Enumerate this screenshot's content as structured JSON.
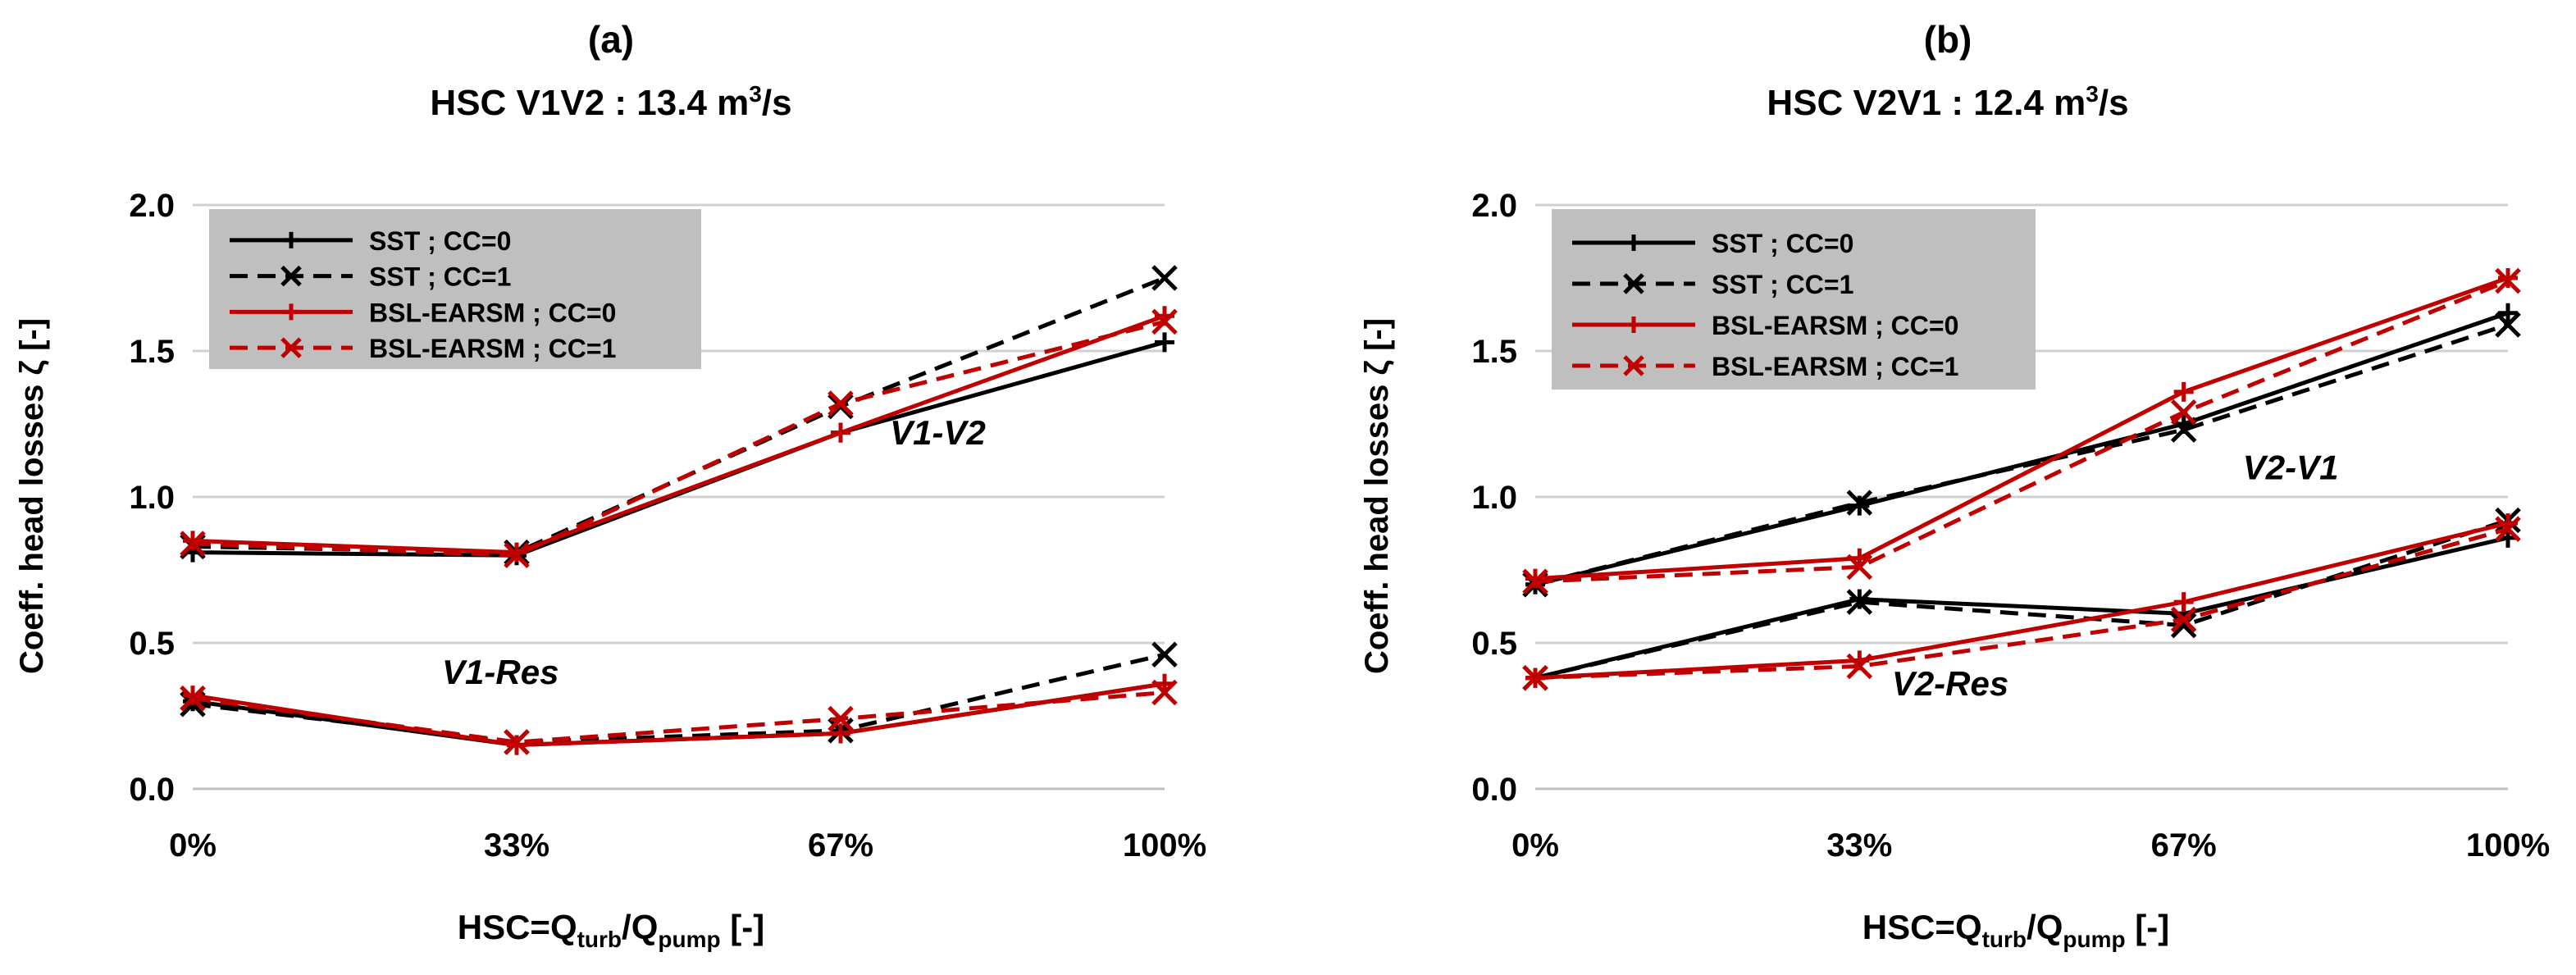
{
  "chart_data": [
    {
      "type": "line",
      "panel_label": "(a)",
      "title_prefix": "HSC V1V2 : 13.4 m",
      "title_sup": "3",
      "title_suffix": "/s",
      "ylabel": "Coeff. head losses ζ [-]",
      "xlabel_main": "HSC=Q",
      "xlabel_sub1": "turb",
      "xlabel_mid": "/Q",
      "xlabel_sub2": "pump",
      "xlabel_end": " [-]",
      "categories": [
        "0%",
        "33%",
        "67%",
        "100%"
      ],
      "ylim": [
        0,
        2
      ],
      "yticks": [
        "0.0",
        "0.5",
        "1.0",
        "1.5",
        "2.0"
      ],
      "yticks_values": [
        0,
        0.5,
        1.0,
        1.5,
        2.0
      ],
      "grid": true,
      "legend_position": "top-left",
      "annotations": [
        {
          "text": "V1-V2",
          "x": 2.3,
          "y": 1.18
        },
        {
          "text": "V1-Res",
          "x": 0.95,
          "y": 0.36
        }
      ],
      "series": [
        {
          "name": "SST ; CC=0",
          "group": "V1-V2",
          "color": "#000000",
          "dash": false,
          "marker": "plus",
          "values": [
            0.81,
            0.8,
            1.22,
            1.53
          ]
        },
        {
          "name": "SST ; CC=1",
          "group": "V1-V2",
          "color": "#000000",
          "dash": true,
          "marker": "x",
          "values": [
            0.83,
            0.81,
            1.31,
            1.75
          ]
        },
        {
          "name": "BSL-EARSM ; CC=0",
          "group": "V1-V2",
          "color": "#c00000",
          "dash": false,
          "marker": "plus",
          "values": [
            0.85,
            0.81,
            1.22,
            1.62
          ]
        },
        {
          "name": "BSL-EARSM ; CC=1",
          "group": "V1-V2",
          "color": "#c00000",
          "dash": true,
          "marker": "x",
          "values": [
            0.84,
            0.8,
            1.32,
            1.6
          ]
        },
        {
          "name": "SST ; CC=0",
          "group": "V1-Res",
          "color": "#000000",
          "dash": false,
          "marker": "plus",
          "values": [
            0.3,
            0.15,
            0.19,
            0.36
          ]
        },
        {
          "name": "SST ; CC=1",
          "group": "V1-Res",
          "color": "#000000",
          "dash": true,
          "marker": "x",
          "values": [
            0.29,
            0.16,
            0.2,
            0.46
          ]
        },
        {
          "name": "BSL-EARSM ; CC=0",
          "group": "V1-Res",
          "color": "#c00000",
          "dash": false,
          "marker": "plus",
          "values": [
            0.32,
            0.15,
            0.19,
            0.36
          ]
        },
        {
          "name": "BSL-EARSM ; CC=1",
          "group": "V1-Res",
          "color": "#c00000",
          "dash": true,
          "marker": "x",
          "values": [
            0.31,
            0.16,
            0.24,
            0.33
          ]
        }
      ],
      "legend": [
        {
          "label": "SST ; CC=0",
          "color": "#000000",
          "dash": false,
          "marker": "plus"
        },
        {
          "label": "SST ; CC=1",
          "color": "#000000",
          "dash": true,
          "marker": "x"
        },
        {
          "label": "BSL-EARSM ; CC=0",
          "color": "#c00000",
          "dash": false,
          "marker": "plus"
        },
        {
          "label": "BSL-EARSM ; CC=1",
          "color": "#c00000",
          "dash": true,
          "marker": "x"
        }
      ]
    },
    {
      "type": "line",
      "panel_label": "(b)",
      "title_prefix": "HSC V2V1 : 12.4 m",
      "title_sup": "3",
      "title_suffix": "/s",
      "ylabel": "Coeff. head losses ζ [-]",
      "xlabel_main": "HSC=Q",
      "xlabel_sub1": "turb",
      "xlabel_mid": "/Q",
      "xlabel_sub2": "pump",
      "xlabel_end": " [-]",
      "categories": [
        "0%",
        "33%",
        "67%",
        "100%"
      ],
      "ylim": [
        0,
        2
      ],
      "yticks": [
        "0.0",
        "0.5",
        "1.0",
        "1.5",
        "2.0"
      ],
      "yticks_values": [
        0,
        0.5,
        1.0,
        1.5,
        2.0
      ],
      "grid": true,
      "legend_position": "top-left",
      "annotations": [
        {
          "text": "V2-V1",
          "x": 2.33,
          "y": 1.06
        },
        {
          "text": "V2-Res",
          "x": 1.28,
          "y": 0.32
        }
      ],
      "series": [
        {
          "name": "SST ; CC=0",
          "group": "V2-V1",
          "color": "#000000",
          "dash": false,
          "marker": "plus",
          "values": [
            0.7,
            0.97,
            1.25,
            1.63
          ]
        },
        {
          "name": "SST ; CC=1",
          "group": "V2-V1",
          "color": "#000000",
          "dash": true,
          "marker": "x",
          "values": [
            0.7,
            0.98,
            1.23,
            1.59
          ]
        },
        {
          "name": "BSL-EARSM ; CC=0",
          "group": "V2-V1",
          "color": "#c00000",
          "dash": false,
          "marker": "plus",
          "values": [
            0.72,
            0.79,
            1.36,
            1.75
          ]
        },
        {
          "name": "BSL-EARSM ; CC=1",
          "group": "V2-V1",
          "color": "#c00000",
          "dash": true,
          "marker": "x",
          "values": [
            0.71,
            0.76,
            1.29,
            1.74
          ]
        },
        {
          "name": "SST ; CC=0",
          "group": "V2-Res",
          "color": "#000000",
          "dash": false,
          "marker": "plus",
          "values": [
            0.38,
            0.65,
            0.6,
            0.86
          ]
        },
        {
          "name": "SST ; CC=1",
          "group": "V2-Res",
          "color": "#000000",
          "dash": true,
          "marker": "x",
          "values": [
            0.38,
            0.64,
            0.56,
            0.92
          ]
        },
        {
          "name": "BSL-EARSM ; CC=0",
          "group": "V2-Res",
          "color": "#c00000",
          "dash": false,
          "marker": "plus",
          "values": [
            0.38,
            0.44,
            0.64,
            0.91
          ]
        },
        {
          "name": "BSL-EARSM ; CC=1",
          "group": "V2-Res",
          "color": "#c00000",
          "dash": true,
          "marker": "x",
          "values": [
            0.38,
            0.42,
            0.58,
            0.89
          ]
        }
      ],
      "legend": [
        {
          "label": "SST ; CC=0",
          "color": "#000000",
          "dash": false,
          "marker": "plus"
        },
        {
          "label": "SST ; CC=1",
          "color": "#000000",
          "dash": true,
          "marker": "x"
        },
        {
          "label": "BSL-EARSM ; CC=0",
          "color": "#c00000",
          "dash": false,
          "marker": "plus"
        },
        {
          "label": "BSL-EARSM ; CC=1",
          "color": "#c00000",
          "dash": true,
          "marker": "x"
        }
      ]
    }
  ]
}
